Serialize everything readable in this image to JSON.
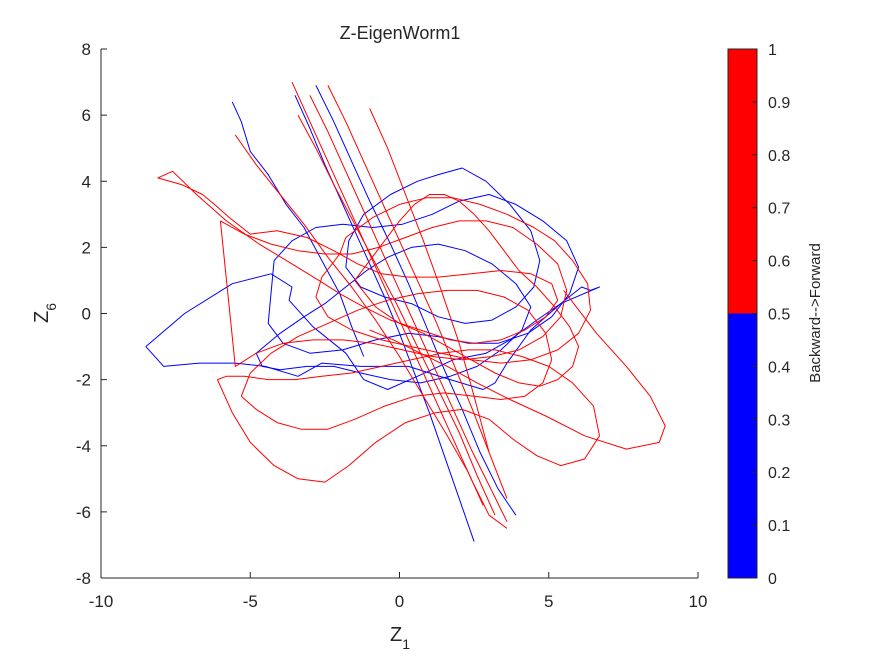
{
  "chart_data": {
    "type": "line",
    "title": "Z-EigenWorm1",
    "xlabel": {
      "main": "Z",
      "sub": "1"
    },
    "ylabel": {
      "main": "Z",
      "sub": "6"
    },
    "xlim": [
      -10,
      10
    ],
    "ylim": [
      -8,
      8
    ],
    "xticks": [
      -10,
      -5,
      0,
      5,
      10
    ],
    "yticks": [
      -8,
      -6,
      -4,
      -2,
      0,
      2,
      4,
      6,
      8
    ],
    "grid": false,
    "colorbar": {
      "label": "Backward-->Forward",
      "ticks": [
        0,
        0.1,
        0.2,
        0.3,
        0.4,
        0.5,
        0.6,
        0.7,
        0.8,
        0.9,
        1
      ],
      "segments": [
        {
          "from": 0,
          "to": 0.5,
          "color": "#0000ff"
        },
        {
          "from": 0.5,
          "to": 1,
          "color": "#ff0000"
        }
      ]
    },
    "series": [
      {
        "color": "#0000ff",
        "x": [
          -8.5,
          -7.2,
          -5.6,
          -4.3,
          -3.6,
          -3.7,
          -2.9,
          -1.8,
          -1.2,
          -0.4,
          0.6,
          1.8,
          2.9,
          3.7,
          4.6,
          5.4,
          6.1,
          6.4,
          6.7,
          5.4,
          4.4,
          3.6,
          3.2,
          2.8,
          1.7,
          0.3,
          -1.3,
          -2.6,
          -3.4,
          -4.5,
          -5.5,
          -6.7,
          -7.9,
          -8.5
        ],
        "y": [
          -1.0,
          0.0,
          0.9,
          1.2,
          0.8,
          0.4,
          -0.4,
          -1.2,
          -2.0,
          -2.3,
          -1.9,
          -1.4,
          -1.2,
          -0.8,
          -0.2,
          0.3,
          0.8,
          0.7,
          0.8,
          0.3,
          -0.5,
          -1.5,
          -2.1,
          -2.3,
          -2.0,
          -1.6,
          -1.6,
          -1.5,
          -1.9,
          -1.6,
          -1.5,
          -1.5,
          -1.6,
          -1.0
        ]
      },
      {
        "color": "#0000ff",
        "x": [
          -5.6,
          -5.3,
          -5.0,
          -4.4,
          -3.8,
          -3.2,
          -2.6,
          -2.0,
          -1.6,
          -1.2
        ],
        "y": [
          6.4,
          5.8,
          4.9,
          4.2,
          3.3,
          2.6,
          1.6,
          0.6,
          -0.4,
          -1.3
        ]
      },
      {
        "color": "#0000ff",
        "x": [
          -3.5,
          -3.0,
          -2.5,
          -2.0,
          -1.5,
          -1.0,
          -0.5,
          0.0,
          0.5,
          1.0,
          1.5,
          2.0,
          2.5
        ],
        "y": [
          6.6,
          5.6,
          4.5,
          3.5,
          2.5,
          1.5,
          0.5,
          -0.6,
          -1.8,
          -3.0,
          -4.3,
          -5.6,
          -6.9
        ]
      },
      {
        "color": "#0000ff",
        "x": [
          -2.8,
          -2.2,
          -1.6,
          -1.0,
          -0.3,
          0.3,
          0.9,
          1.5,
          2.1,
          2.7,
          3.3,
          3.9
        ],
        "y": [
          6.9,
          5.8,
          4.6,
          3.4,
          2.1,
          0.9,
          -0.4,
          -1.7,
          -2.9,
          -4.2,
          -5.3,
          -6.1
        ]
      },
      {
        "color": "#0000ff",
        "x": [
          -4.2,
          -3.6,
          -2.8,
          -1.9,
          -0.9,
          0.1,
          1.1,
          2.0,
          3.0,
          3.9,
          4.8,
          5.6,
          6.0,
          5.7,
          5.1,
          4.3,
          3.3,
          2.3,
          1.3,
          0.3,
          -0.8,
          -1.9,
          -3.0,
          -3.9,
          -4.4,
          -4.2
        ],
        "y": [
          1.6,
          2.2,
          2.6,
          2.7,
          2.6,
          2.7,
          3.0,
          3.4,
          3.6,
          3.3,
          2.8,
          2.2,
          1.4,
          0.6,
          -0.1,
          -0.6,
          -0.9,
          -0.9,
          -0.7,
          -0.6,
          -0.8,
          -1.1,
          -1.2,
          -0.9,
          -0.3,
          1.6
        ]
      },
      {
        "color": "#0000ff",
        "x": [
          -4.8,
          -4.0,
          -3.2,
          -2.5,
          -1.8,
          -1.1,
          -0.4,
          0.4,
          1.3,
          2.2,
          3.1,
          3.9,
          4.4,
          4.1,
          3.4,
          2.6,
          1.7,
          0.7,
          -0.3,
          -1.3,
          -2.2,
          -3.1,
          -4.0,
          -4.6,
          -4.8
        ],
        "y": [
          -1.2,
          -0.6,
          -0.1,
          0.3,
          0.8,
          1.3,
          1.7,
          2.0,
          2.1,
          1.9,
          1.5,
          0.9,
          0.2,
          -0.5,
          -1.1,
          -1.6,
          -1.9,
          -2.1,
          -2.0,
          -1.8,
          -1.6,
          -1.6,
          -1.7,
          -1.6,
          -1.2
        ]
      },
      {
        "color": "#0000ff",
        "x": [
          1.3,
          2.1,
          2.9,
          3.7,
          4.4,
          4.7,
          4.5,
          3.9,
          3.1,
          2.2,
          1.3,
          0.4,
          -0.5,
          -1.3,
          -1.8,
          -1.7,
          -1.2,
          -0.3,
          0.6,
          1.3
        ],
        "y": [
          4.2,
          4.4,
          4.0,
          3.3,
          2.5,
          1.6,
          0.8,
          0.2,
          -0.2,
          -0.3,
          -0.1,
          0.3,
          0.5,
          0.8,
          1.4,
          2.2,
          3.0,
          3.6,
          4.0,
          4.2
        ]
      },
      {
        "color": "#ff0000",
        "x": [
          -8.1,
          -7.6,
          -6.8,
          -5.8,
          -4.7,
          -3.6,
          -2.7,
          -2.0,
          -1.2,
          -0.3,
          0.7,
          1.7,
          2.5,
          3.4,
          4.2,
          4.9,
          5.3,
          5.1,
          4.4,
          3.4,
          2.4,
          1.3,
          0.3,
          -0.6,
          -1.4,
          -2.2,
          -3.1,
          -4.1,
          -5.0,
          -5.7,
          -6.2,
          -6.6,
          -7.3,
          -8.1
        ],
        "y": [
          4.1,
          4.3,
          3.6,
          2.8,
          2.1,
          1.5,
          1.0,
          0.6,
          0.2,
          -0.2,
          -0.5,
          -0.8,
          -0.9,
          -0.8,
          -0.5,
          -0.1,
          0.4,
          0.9,
          1.2,
          1.3,
          1.2,
          1.1,
          1.1,
          1.2,
          1.5,
          1.9,
          2.3,
          2.5,
          2.4,
          2.9,
          3.3,
          3.6,
          3.9,
          4.1
        ]
      },
      {
        "color": "#ff0000",
        "x": [
          -3.6,
          -3.0,
          -2.4,
          -1.8,
          -1.2,
          -0.6,
          0.0,
          0.6,
          1.2,
          1.8,
          2.4,
          3.0,
          3.6
        ],
        "y": [
          7.0,
          5.8,
          4.6,
          3.4,
          2.2,
          1.0,
          -0.2,
          -1.4,
          -2.6,
          -3.8,
          -5.0,
          -6.1,
          -6.5
        ]
      },
      {
        "color": "#ff0000",
        "x": [
          -3.0,
          -2.4,
          -1.8,
          -1.2,
          -0.6,
          0.0,
          0.6,
          1.2,
          1.8,
          2.4,
          3.0,
          3.6
        ],
        "y": [
          6.6,
          5.5,
          4.3,
          3.1,
          1.9,
          0.7,
          -0.5,
          -1.7,
          -2.9,
          -4.1,
          -5.2,
          -6.3
        ]
      },
      {
        "color": "#ff0000",
        "x": [
          -2.4,
          -1.8,
          -1.2,
          -0.6,
          0.0,
          0.6,
          1.2,
          1.8,
          2.4,
          3.0,
          3.6
        ],
        "y": [
          6.9,
          5.8,
          4.6,
          3.4,
          2.2,
          1.0,
          -0.2,
          -1.5,
          -2.8,
          -4.2,
          -5.6
        ]
      },
      {
        "color": "#ff0000",
        "x": [
          -3.4,
          -2.8,
          -2.2,
          -1.5,
          -0.8,
          -0.1,
          0.6,
          1.3,
          2.0,
          2.6,
          3.2
        ],
        "y": [
          6.0,
          5.0,
          3.9,
          2.7,
          1.5,
          0.3,
          -1.0,
          -2.3,
          -3.6,
          -4.9,
          -6.1
        ]
      },
      {
        "color": "#ff0000",
        "x": [
          -5.5,
          -4.8,
          -4.0,
          -3.2,
          -2.4,
          -1.6,
          -0.8,
          0.0,
          0.8,
          1.6,
          2.3,
          2.8
        ],
        "y": [
          5.4,
          4.5,
          3.6,
          2.7,
          1.7,
          0.8,
          -0.2,
          -1.3,
          -2.5,
          -3.7,
          -4.8,
          -5.8
        ]
      },
      {
        "color": "#ff0000",
        "x": [
          -1.0,
          -0.4,
          0.2,
          0.8,
          1.4,
          2.0,
          2.5,
          3.0
        ],
        "y": [
          6.2,
          5.0,
          3.6,
          2.2,
          0.7,
          -0.9,
          -2.5,
          -4.2
        ]
      },
      {
        "color": "#ff0000",
        "x": [
          -6.1,
          -5.6,
          -5.0,
          -4.2,
          -3.4,
          -2.5,
          -1.7,
          -0.8,
          0.2,
          1.2,
          2.1,
          3.0,
          3.8,
          4.6,
          5.4,
          6.2,
          6.7,
          6.5,
          5.8,
          5.0,
          4.1,
          3.2,
          2.3,
          1.4,
          0.4,
          -0.6,
          -1.6,
          -2.6,
          -3.5,
          -4.4,
          -5.2,
          -5.8,
          -6.1
        ],
        "y": [
          -2.0,
          -3.0,
          -3.9,
          -4.6,
          -5.0,
          -5.1,
          -4.6,
          -3.9,
          -3.3,
          -3.0,
          -2.9,
          -3.2,
          -3.8,
          -4.3,
          -4.6,
          -4.4,
          -3.7,
          -2.8,
          -2.1,
          -1.6,
          -1.3,
          -1.1,
          -1.1,
          -1.2,
          -1.4,
          -1.6,
          -1.8,
          -1.9,
          -2.0,
          -2.0,
          -1.9,
          -1.9,
          -2.0
        ]
      },
      {
        "color": "#ff0000",
        "x": [
          -5.3,
          -4.8,
          -4.1,
          -3.3,
          -2.4,
          -1.5,
          -0.5,
          0.5,
          1.5,
          2.5,
          3.4,
          4.2,
          4.8,
          5.1,
          4.9,
          4.3,
          3.5,
          2.6,
          1.6,
          0.6,
          -0.4,
          -1.4,
          -2.4,
          -3.4,
          -4.3,
          -5.0,
          -5.3
        ],
        "y": [
          -2.5,
          -2.9,
          -3.3,
          -3.5,
          -3.5,
          -3.2,
          -2.8,
          -2.5,
          -2.4,
          -2.5,
          -2.6,
          -2.5,
          -2.1,
          -1.4,
          -0.6,
          0.1,
          0.5,
          0.7,
          0.7,
          0.6,
          0.4,
          0.1,
          -0.3,
          -0.7,
          -1.2,
          -1.8,
          -2.5
        ]
      },
      {
        "color": "#ff0000",
        "x": [
          -6.0,
          -5.2,
          -4.3,
          -3.4,
          -2.5,
          -1.6,
          -0.7,
          0.2,
          1.1,
          2.0,
          2.9,
          3.8,
          4.6,
          5.3,
          5.6,
          5.4,
          4.8,
          4.0,
          3.1,
          2.1,
          1.1,
          0.1,
          -0.9,
          -1.9,
          -2.9,
          -3.9,
          -4.8,
          -5.5,
          -6.0
        ],
        "y": [
          2.8,
          2.4,
          2.1,
          1.9,
          1.8,
          1.8,
          2.0,
          2.3,
          2.6,
          2.8,
          2.8,
          2.6,
          2.1,
          1.5,
          0.7,
          -0.1,
          -0.7,
          -1.1,
          -1.3,
          -1.4,
          -1.3,
          -1.1,
          -0.9,
          -0.8,
          -0.8,
          -0.9,
          -1.2,
          -1.6,
          2.8
        ]
      },
      {
        "color": "#ff0000",
        "x": [
          5.5,
          6.6,
          7.6,
          8.4,
          8.9,
          8.7,
          7.6,
          6.2,
          4.9,
          3.7,
          2.6,
          1.6,
          0.7,
          -0.2,
          -1.0
        ],
        "y": [
          0.7,
          -0.6,
          -1.6,
          -2.5,
          -3.4,
          -3.9,
          -4.1,
          -3.7,
          -3.1,
          -2.6,
          -2.1,
          -1.6,
          -1.2,
          -0.8,
          -0.5
        ]
      },
      {
        "color": "#ff0000",
        "x": [
          -1.5,
          -1.0,
          -0.5,
          0.0,
          0.5,
          1.0,
          1.5,
          2.0,
          2.5,
          3.0,
          3.5,
          4.0,
          4.6,
          5.2,
          5.7,
          6.0,
          5.8,
          5.3,
          4.7,
          4.0,
          3.2,
          2.4,
          1.6,
          0.8,
          0.0,
          -0.8,
          -1.5
        ],
        "y": [
          1.0,
          1.6,
          2.2,
          2.8,
          3.3,
          3.6,
          3.6,
          3.4,
          3.0,
          2.5,
          1.9,
          1.3,
          0.8,
          0.2,
          -0.4,
          -1.0,
          -1.6,
          -2.0,
          -2.2,
          -2.1,
          -1.8,
          -1.4,
          -1.0,
          -0.6,
          -0.3,
          0.2,
          1.0
        ]
      },
      {
        "color": "#ff0000",
        "x": [
          -1.8,
          -0.9,
          0.0,
          0.9,
          1.8,
          2.7,
          3.6,
          4.5,
          5.2,
          5.8,
          6.3,
          6.4,
          6.0,
          5.3,
          4.4,
          3.4,
          2.4,
          1.4,
          0.4,
          -0.6,
          -1.6,
          -2.4,
          -2.8,
          -2.6,
          -2.0,
          -1.8
        ],
        "y": [
          2.3,
          2.9,
          3.3,
          3.5,
          3.5,
          3.3,
          3.0,
          2.6,
          2.2,
          1.6,
          0.9,
          0.1,
          -0.6,
          -1.1,
          -1.4,
          -1.5,
          -1.4,
          -1.2,
          -1.0,
          -0.8,
          -0.5,
          -0.1,
          0.5,
          1.1,
          1.8,
          2.3
        ]
      }
    ]
  }
}
